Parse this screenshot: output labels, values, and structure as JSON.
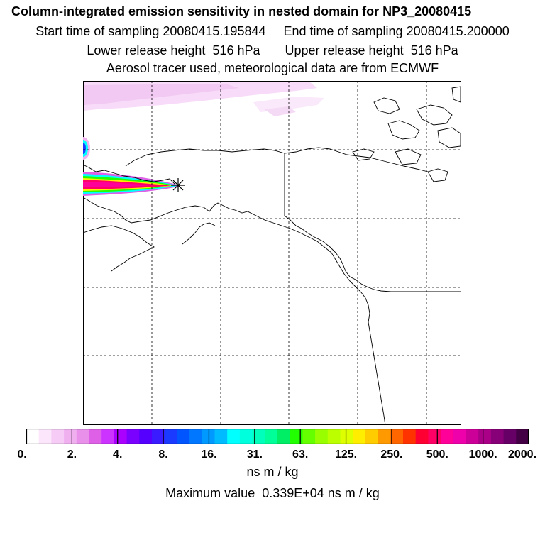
{
  "header": {
    "title": "Column-integrated emission sensitivity in nested domain for NP3_20080415",
    "sampling": "Start time of sampling 20080415.195844     End time of sampling 20080415.200000",
    "release": "Lower release height  516 hPa       Upper release height  516 hPa",
    "info": "Aerosol tracer used, meteorological data are from ECMWF"
  },
  "colorbar": {
    "ticks": [
      "0.",
      "2.",
      "4.",
      "8.",
      "16.",
      "31.",
      "63.",
      "125.",
      "250.",
      "500.",
      "1000.",
      "2000."
    ],
    "colors": [
      "#ffffff",
      "#fbe6fb",
      "#f6ccf6",
      "#f0b0f0",
      "#e890ea",
      "#dd60e6",
      "#cc33ff",
      "#aa00ff",
      "#7a00ff",
      "#5500ff",
      "#3a1aff",
      "#1a3aff",
      "#0055ff",
      "#0077ff",
      "#0099ff",
      "#00bbff",
      "#00ffff",
      "#00ffdd",
      "#00ffbb",
      "#00ff99",
      "#00ee66",
      "#22ff00",
      "#66ff00",
      "#99ff00",
      "#bbff00",
      "#ddff00",
      "#ffee00",
      "#ffcc00",
      "#ff9900",
      "#ff6600",
      "#ff3300",
      "#ff0033",
      "#ff0066",
      "#ff0099",
      "#ee00aa",
      "#cc0099",
      "#aa0088",
      "#880077",
      "#660066",
      "#440044"
    ],
    "units": "ns m / kg"
  },
  "footer": {
    "max_value": "Maximum value  0.339E+04 ns m / kg"
  }
}
